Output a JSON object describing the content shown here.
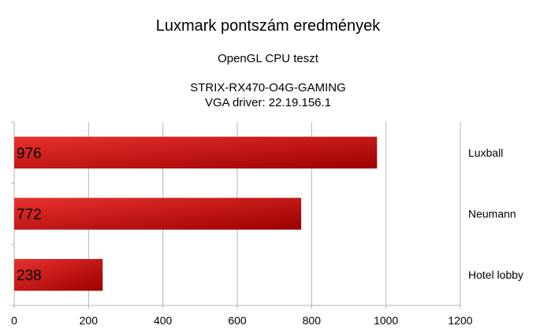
{
  "chart_data": {
    "type": "bar",
    "orientation": "horizontal",
    "title": "Luxmark pontszám eredmények",
    "subtitle": "OpenGL CPU teszt",
    "subtitle2": "STRIX-RX470-O4G-GAMING",
    "subtitle3": "VGA driver: 22.19.156.1",
    "categories": [
      "Luxball",
      "Neumann",
      "Hotel lobby"
    ],
    "values": [
      976,
      772,
      238
    ],
    "data_labels": [
      "976",
      "772",
      "238"
    ],
    "xlim": [
      0,
      1200
    ],
    "x_ticks": [
      "0",
      "200",
      "400",
      "600",
      "800",
      "1000",
      "1200"
    ],
    "grid": true,
    "category_labels_side": "right",
    "bar_color_start": "#e8322f",
    "bar_color_end": "#9c0000"
  }
}
